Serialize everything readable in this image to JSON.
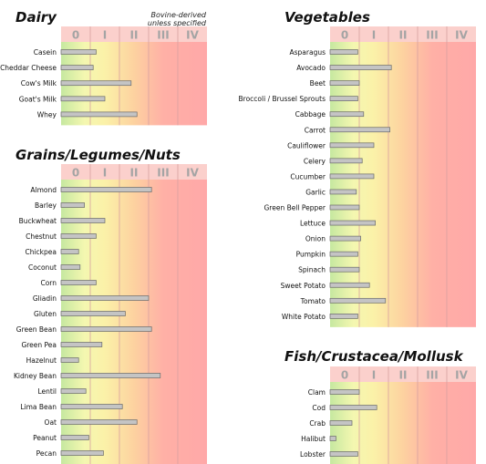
{
  "chart_data": [
    {
      "type": "bar",
      "title": "Dairy",
      "annotation": [
        "Bovine-derived",
        "unless specified"
      ],
      "class_labels": [
        "0",
        "I",
        "II",
        "III",
        "IV"
      ],
      "xlim": [
        0,
        5
      ],
      "categories": [
        "Casein",
        "Cheddar Cheese",
        "Cow's Milk",
        "Goat's Milk",
        "Whey"
      ],
      "values": [
        1.2,
        1.1,
        2.4,
        1.5,
        2.6
      ]
    },
    {
      "type": "bar",
      "title": "Grains/Legumes/Nuts",
      "class_labels": [
        "0",
        "I",
        "II",
        "III",
        "IV"
      ],
      "xlim": [
        0,
        5
      ],
      "categories": [
        "Almond",
        "Barley",
        "Buckwheat",
        "Chestnut",
        "Chickpea",
        "Coconut",
        "Corn",
        "Gliadin",
        "Gluten",
        "Green Bean",
        "Green Pea",
        "Hazelnut",
        "Kidney Bean",
        "Lentil",
        "Lima Bean",
        "Oat",
        "Peanut",
        "Pecan"
      ],
      "values": [
        3.1,
        0.8,
        1.5,
        1.2,
        0.6,
        0.65,
        1.2,
        3.0,
        2.2,
        3.1,
        1.4,
        0.6,
        3.4,
        0.85,
        2.1,
        2.6,
        0.95,
        1.45
      ]
    },
    {
      "type": "bar",
      "title": "Vegetables",
      "class_labels": [
        "0",
        "I",
        "II",
        "III",
        "IV"
      ],
      "xlim": [
        0,
        5
      ],
      "categories": [
        "Asparagus",
        "Avocado",
        "Beet",
        "Broccoli / Brussel Sprouts",
        "Cabbage",
        "Carrot",
        "Cauliflower",
        "Celery",
        "Cucumber",
        "Garlic",
        "Green Bell Pepper",
        "Lettuce",
        "Onion",
        "Pumpkin",
        "Spinach",
        "Sweet Potato",
        "Tomato",
        "White Potato"
      ],
      "values": [
        0.95,
        2.1,
        1.0,
        0.95,
        1.15,
        2.05,
        1.5,
        1.1,
        1.5,
        0.9,
        1.0,
        1.55,
        1.05,
        0.95,
        1.0,
        1.35,
        1.9,
        0.95
      ]
    },
    {
      "type": "bar",
      "title": "Fish/Crustacea/Mollusk",
      "class_labels": [
        "0",
        "I",
        "II",
        "III",
        "IV"
      ],
      "xlim": [
        0,
        5
      ],
      "categories": [
        "Clam",
        "Cod",
        "Crab",
        "Halibut",
        "Lobster"
      ],
      "values": [
        1.0,
        1.6,
        0.75,
        0.2,
        0.95
      ]
    }
  ]
}
